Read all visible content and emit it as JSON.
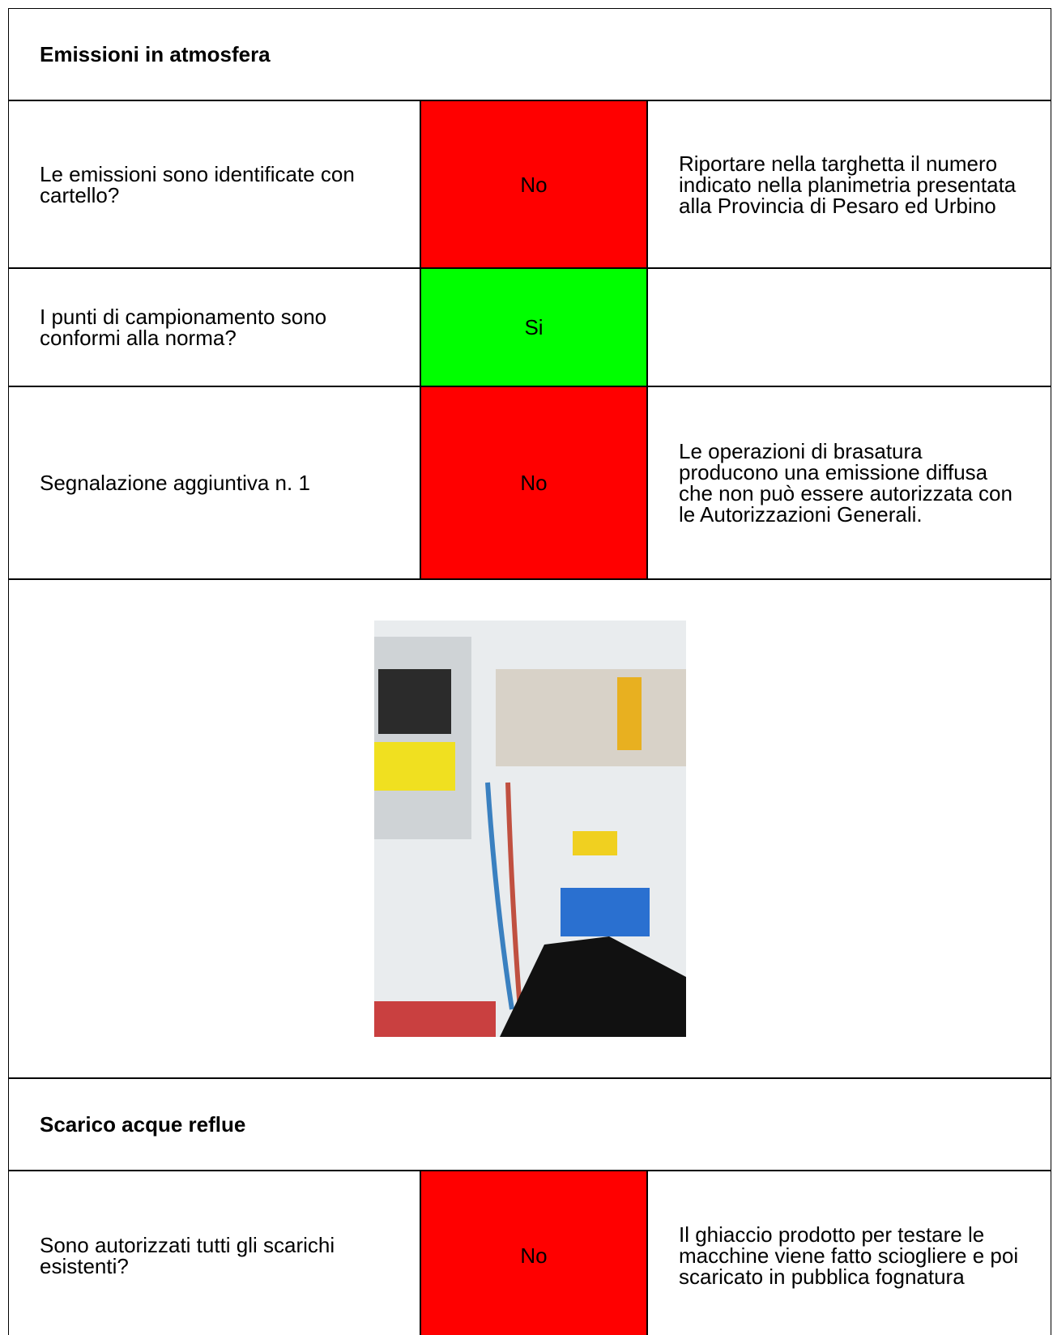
{
  "sections": [
    {
      "title": "Emissioni in atmosfera",
      "rows": [
        {
          "question": "Le emissioni sono identificate con cartello?",
          "status": "No",
          "color": "#ff0000",
          "note": "Riportare nella targhetta il numero indicato nella planimetria presentata alla Provincia di Pesaro ed Urbino"
        },
        {
          "question": "I punti di campionamento sono conformi alla norma?",
          "status": "Si",
          "color": "#00ff00",
          "note": null
        },
        {
          "question": "Segnalazione aggiuntiva n. 1",
          "status": "No",
          "color": "#ff0000",
          "note": "Le operazioni di brasatura producono una emissione diffusa che non può essere autorizzata con le Autorizzazioni Generali."
        }
      ]
    },
    {
      "title": "Scarico acque reflue",
      "rows": [
        {
          "question": "Sono autorizzati tutti gli scarichi esistenti?",
          "status": "No",
          "color": "#ff0000",
          "note": "Il ghiaccio prodotto per testare le macchine viene fatto sciogliere e poi scaricato in pubblica fognatura"
        }
      ]
    }
  ]
}
